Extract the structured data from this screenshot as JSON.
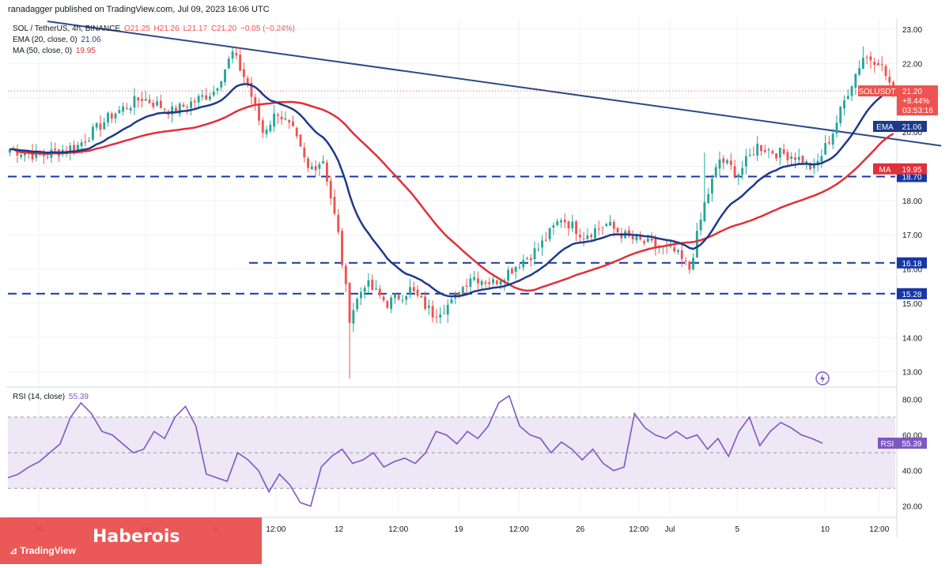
{
  "header": {
    "publisher_line": "ranadagger published on TradingView.com, Jul 09, 2023 16:06 UTC"
  },
  "legend": {
    "symbol_line": "SOL / TetherUS, 4h, BINANCE",
    "ohlc": {
      "o": "O21.25",
      "h": "H21.26",
      "l": "L21.17",
      "c": "C21.20",
      "chg": "−0.05 (−0.24%)"
    },
    "ema_line": "EMA (20, close, 0)",
    "ema_value": "21.06",
    "ma_line": "MA (50, close, 0)",
    "ma_value": "19.95",
    "rsi_line": "RSI (14, close)",
    "rsi_value": "55.39"
  },
  "colors": {
    "up": "#26a69a",
    "down": "#ef5350",
    "ema": "#1e3a8a",
    "ma": "#e0303a",
    "level": "#1736a8",
    "trendline": "#2b4a86",
    "rsi": "#7e57c2",
    "rsi_band": "#ede7f6",
    "price_label": "#ef5350",
    "brand": "#e84b4b"
  },
  "branding": {
    "site": "Haberois",
    "tv": "TradingView"
  },
  "chart_data": [
    {
      "type": "candlestick",
      "title": "SOL / TetherUS, 4h, BINANCE",
      "y_ticks": [
        "13.00",
        "14.00",
        "15.00",
        "16.00",
        "17.00",
        "18.00",
        "19.00",
        "20.00",
        "21.00",
        "22.00",
        "23.00"
      ],
      "x_ticks": [
        "26",
        "Jun",
        "5",
        "12:00",
        "12",
        "12:00",
        "19",
        "12:00",
        "26",
        "12:00",
        "Jul",
        "5",
        "10",
        "12:00"
      ],
      "ylim": [
        12.6,
        23.3
      ],
      "price_path": [
        [
          0,
          19.5
        ],
        [
          8,
          19.3
        ],
        [
          18,
          19.6
        ],
        [
          27,
          20.5
        ],
        [
          35,
          21.0
        ],
        [
          43,
          20.6
        ],
        [
          49,
          20.9
        ],
        [
          54,
          21.2
        ],
        [
          59,
          22.3
        ],
        [
          63,
          21.4
        ],
        [
          67,
          20.0
        ],
        [
          71,
          20.6
        ],
        [
          75,
          20.0
        ],
        [
          79,
          18.9
        ],
        [
          83,
          19.2
        ],
        [
          87,
          17.0
        ],
        [
          90,
          14.6
        ],
        [
          94,
          15.6
        ],
        [
          100,
          15.0
        ],
        [
          106,
          15.4
        ],
        [
          112,
          14.7
        ],
        [
          117,
          15.0
        ],
        [
          122,
          15.8
        ],
        [
          128,
          15.6
        ],
        [
          134,
          16.1
        ],
        [
          140,
          16.6
        ],
        [
          146,
          17.5
        ],
        [
          152,
          17.0
        ],
        [
          158,
          17.3
        ],
        [
          164,
          16.9
        ],
        [
          170,
          16.7
        ],
        [
          176,
          16.5
        ],
        [
          180,
          16.0
        ],
        [
          184,
          17.9
        ],
        [
          188,
          19.2
        ],
        [
          193,
          18.8
        ],
        [
          198,
          19.6
        ],
        [
          203,
          19.4
        ],
        [
          208,
          19.3
        ],
        [
          213,
          18.9
        ],
        [
          218,
          20.0
        ],
        [
          222,
          21.2
        ],
        [
          226,
          22.2
        ],
        [
          230,
          22.1
        ],
        [
          234,
          21.2
        ]
      ],
      "highs": {
        "59": 22.4,
        "90": 12.8,
        "184": 19.4,
        "226": 22.5
      },
      "levels": [
        {
          "value": 18.7,
          "label": "18.70"
        },
        {
          "value": 16.18,
          "label": "16.18"
        },
        {
          "value": 15.28,
          "label": "15.28"
        }
      ],
      "trendline": {
        "from": [
          0,
          23.3
        ],
        "to": [
          255,
          19.6
        ]
      },
      "current_price": {
        "symbol": "SOLUSDT",
        "value": "21.20",
        "change": "+8.44%",
        "countdown": "03:53:16"
      },
      "ema": {
        "name": "EMA",
        "value": "21.06"
      },
      "ma": {
        "name": "MA",
        "value": "19.95"
      }
    },
    {
      "type": "line",
      "title": "RSI (14, close)",
      "y_ticks": [
        "20.00",
        "40.00",
        "60.00",
        "80.00"
      ],
      "ylim": [
        15,
        86
      ],
      "band": [
        30,
        70
      ],
      "midline": 50,
      "series": [
        {
          "name": "RSI",
          "values": [
            36,
            38,
            42,
            45,
            50,
            55,
            70,
            78,
            72,
            62,
            60,
            55,
            50,
            52,
            62,
            58,
            70,
            76,
            65,
            38,
            36,
            34,
            50,
            46,
            40,
            28,
            38,
            32,
            22,
            20,
            42,
            48,
            52,
            44,
            46,
            50,
            42,
            45,
            47,
            44,
            50,
            62,
            60,
            55,
            62,
            58,
            65,
            78,
            82,
            65,
            60,
            58,
            50,
            56,
            52,
            46,
            52,
            44,
            40,
            42,
            72,
            64,
            60,
            58,
            62,
            58,
            60,
            52,
            58,
            48,
            62,
            70,
            54,
            62,
            67,
            64,
            60,
            58,
            55.39
          ]
        }
      ],
      "current": {
        "label": "RSI",
        "value": "55.39"
      }
    }
  ]
}
